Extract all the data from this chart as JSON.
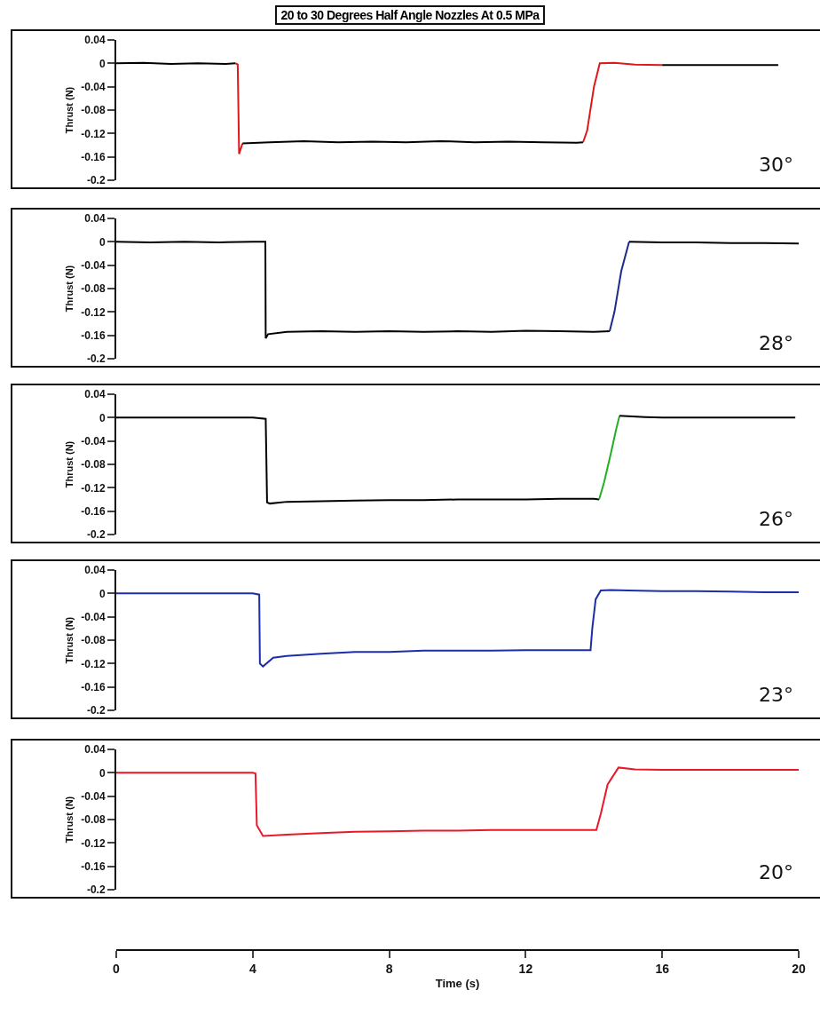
{
  "chart_data": [
    {
      "type": "line",
      "title": "20 to 30 Degrees Half Angle Nozzles At 0.5 MPa",
      "ylabel": "Thrust (N)",
      "annotations": [
        "30°"
      ],
      "xlim": [
        0,
        20
      ],
      "ylim": [
        -0.2,
        0.04
      ],
      "yticks": [
        0.04,
        0,
        -0.04,
        -0.08,
        -0.12,
        -0.16,
        -0.2
      ],
      "tick_labels": "y",
      "series": [
        {
          "color": "#000000",
          "x": [
            0,
            0.8,
            1.6,
            2.4,
            3.2,
            3.5
          ],
          "values": [
            0,
            0.001,
            -0.001,
            0,
            -0.001,
            0
          ]
        },
        {
          "color": "#e01818",
          "x": [
            3.5,
            3.56,
            3.6,
            3.7
          ],
          "values": [
            0,
            -0.002,
            -0.155,
            -0.137
          ]
        },
        {
          "color": "#000000",
          "x": [
            3.7,
            4.5,
            5.5,
            6.5,
            7.5,
            8.5,
            9.5,
            10.5,
            11.5,
            12.5,
            13.5,
            13.68
          ],
          "values": [
            -0.137,
            -0.135,
            -0.133,
            -0.135,
            -0.134,
            -0.135,
            -0.133,
            -0.135,
            -0.134,
            -0.135,
            -0.136,
            -0.135
          ]
        },
        {
          "color": "#e01818",
          "x": [
            13.68,
            13.8,
            14,
            14.17,
            14.6,
            15.2,
            16
          ],
          "values": [
            -0.135,
            -0.115,
            -0.04,
            0,
            0.001,
            -0.002,
            -0.003
          ]
        },
        {
          "color": "#000000",
          "x": [
            16,
            17,
            18,
            19.4
          ],
          "values": [
            -0.003,
            -0.003,
            -0.003,
            -0.003
          ]
        }
      ]
    },
    {
      "type": "line",
      "ylabel": "Thrust (N)",
      "annotations": [
        "28°"
      ],
      "xlim": [
        0,
        20
      ],
      "ylim": [
        -0.2,
        0.04
      ],
      "yticks": [
        0.04,
        0,
        -0.04,
        -0.08,
        -0.12,
        -0.16,
        -0.2
      ],
      "tick_labels": "y",
      "series": [
        {
          "color": "#000000",
          "x": [
            0,
            1,
            2,
            3,
            4,
            4.37,
            4.38,
            4.45,
            5,
            6,
            7,
            8,
            9,
            10,
            11,
            12,
            13,
            14,
            14.46
          ],
          "values": [
            0,
            -0.001,
            0,
            -0.001,
            0,
            0,
            -0.165,
            -0.158,
            -0.154,
            -0.153,
            -0.154,
            -0.153,
            -0.154,
            -0.153,
            -0.154,
            -0.152,
            -0.153,
            -0.154,
            -0.153
          ]
        },
        {
          "color": "#1c2a8c",
          "x": [
            14.46,
            14.6,
            14.8,
            15.03
          ],
          "values": [
            -0.153,
            -0.12,
            -0.05,
            0
          ]
        },
        {
          "color": "#000000",
          "x": [
            15.03,
            16,
            17,
            18,
            19,
            20
          ],
          "values": [
            0,
            -0.001,
            -0.001,
            -0.002,
            -0.002,
            -0.003
          ]
        }
      ]
    },
    {
      "type": "line",
      "ylabel": "Thrust (N)",
      "annotations": [
        "26°"
      ],
      "xlim": [
        0,
        20
      ],
      "ylim": [
        -0.2,
        0.04
      ],
      "yticks": [
        0.04,
        0,
        -0.04,
        -0.08,
        -0.12,
        -0.16,
        -0.2
      ],
      "tick_labels": "y",
      "series": [
        {
          "color": "#000000",
          "x": [
            0,
            1,
            2,
            3,
            4,
            4.38,
            4.42,
            4.5,
            5,
            6,
            7,
            8,
            9,
            10,
            11,
            12,
            13,
            14,
            14.15
          ],
          "values": [
            0,
            0,
            0,
            0,
            0,
            -0.002,
            -0.145,
            -0.147,
            -0.144,
            -0.143,
            -0.142,
            -0.141,
            -0.141,
            -0.14,
            -0.14,
            -0.14,
            -0.139,
            -0.139,
            -0.14
          ]
        },
        {
          "color": "#22b022",
          "x": [
            14.15,
            14.3,
            14.5,
            14.65,
            14.75
          ],
          "values": [
            -0.14,
            -0.11,
            -0.06,
            -0.02,
            0.003
          ]
        },
        {
          "color": "#000000",
          "x": [
            14.75,
            15.5,
            16,
            17,
            18,
            19,
            19.9
          ],
          "values": [
            0.003,
            0.001,
            0,
            0,
            0,
            0,
            0
          ]
        }
      ]
    },
    {
      "type": "line",
      "ylabel": "Thrust (N)",
      "annotations": [
        "23°"
      ],
      "xlim": [
        0,
        20
      ],
      "ylim": [
        -0.2,
        0.04
      ],
      "yticks": [
        0.04,
        0,
        -0.04,
        -0.08,
        -0.12,
        -0.16,
        -0.2
      ],
      "tick_labels": "y",
      "series": [
        {
          "color": "#1a2fa8",
          "x": [
            0,
            1,
            2,
            3,
            4,
            4.19,
            4.21,
            4.3,
            4.6,
            5,
            6,
            7,
            8,
            9,
            10,
            11,
            12,
            13,
            13.9,
            13.95,
            14.05,
            14.2,
            14.5,
            15,
            16,
            17,
            18,
            19,
            20
          ],
          "values": [
            0,
            0,
            0,
            0,
            0,
            -0.002,
            -0.12,
            -0.125,
            -0.11,
            -0.107,
            -0.103,
            -0.1,
            -0.1,
            -0.098,
            -0.098,
            -0.098,
            -0.097,
            -0.097,
            -0.097,
            -0.06,
            -0.01,
            0.005,
            0.006,
            0.005,
            0.004,
            0.004,
            0.003,
            0.002,
            0.002
          ]
        }
      ]
    },
    {
      "type": "line",
      "ylabel": "Thrust (N)",
      "xlabel": "Time (s)",
      "annotations": [
        "20°"
      ],
      "xlim": [
        0,
        20
      ],
      "ylim": [
        -0.2,
        0.04
      ],
      "yticks": [
        0.04,
        0,
        -0.04,
        -0.08,
        -0.12,
        -0.16,
        -0.2
      ],
      "xticks": [
        0,
        4,
        8,
        12,
        16,
        20
      ],
      "series": [
        {
          "color": "#e8192c",
          "x": [
            0,
            1,
            2,
            3,
            4,
            4.08,
            4.12,
            4.3,
            5,
            6,
            7,
            8,
            9,
            10,
            11,
            12,
            13,
            14.07,
            14.2,
            14.4,
            14.72,
            15.2,
            16,
            17,
            18,
            19,
            20
          ],
          "values": [
            0,
            0,
            0,
            0,
            0,
            -0.001,
            -0.09,
            -0.108,
            -0.106,
            -0.103,
            -0.101,
            -0.1,
            -0.099,
            -0.099,
            -0.098,
            -0.098,
            -0.098,
            -0.098,
            -0.07,
            -0.02,
            0.009,
            0.006,
            0.005,
            0.005,
            0.005,
            0.005,
            0.005
          ]
        }
      ]
    }
  ]
}
